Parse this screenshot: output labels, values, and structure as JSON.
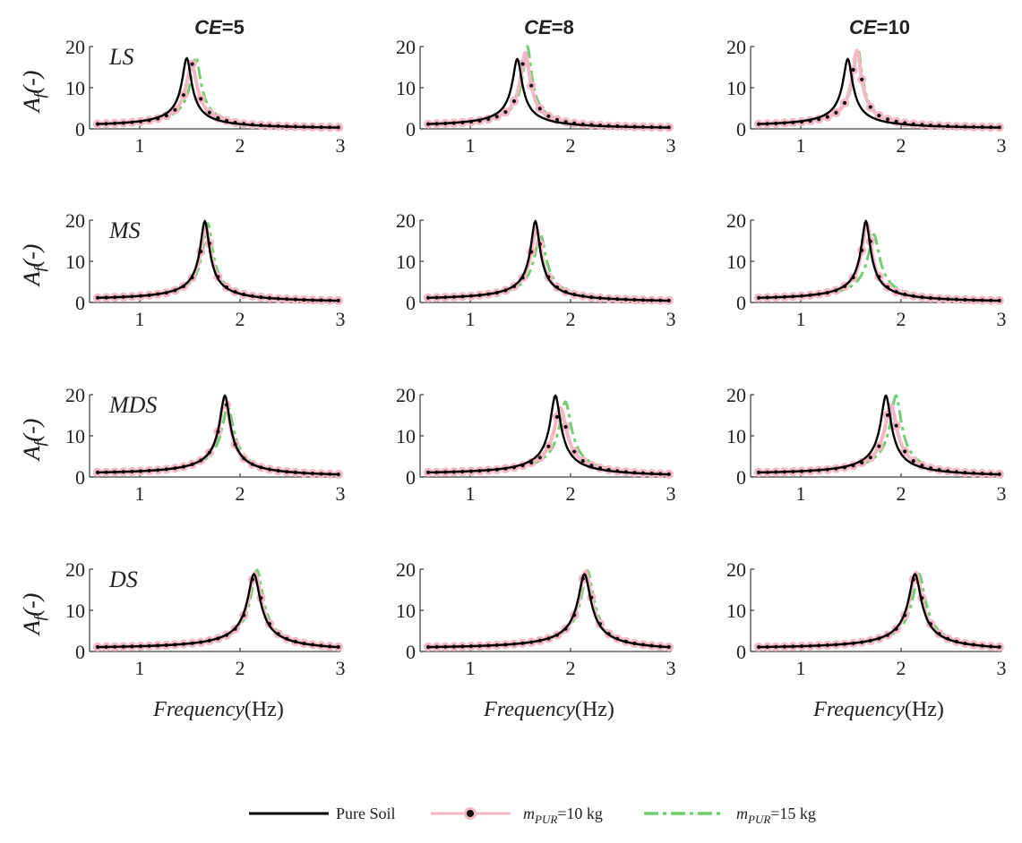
{
  "figure": {
    "x_tick_labels": [
      "1",
      "2",
      "3"
    ],
    "y_tick_labels": [
      "0",
      "10",
      "20"
    ],
    "y_axis_label": {
      "main": "A",
      "sub": "f",
      "tail": "(-)"
    },
    "x_axis_label": {
      "italic": "Frequency",
      "unit": "(Hz)"
    }
  },
  "column_titles": [
    {
      "italic": "CE",
      "tail": "=5"
    },
    {
      "italic": "CE",
      "tail": "=8"
    },
    {
      "italic": "CE",
      "tail": "=10"
    }
  ],
  "row_labels": [
    "LS",
    "MS",
    "MDS",
    "DS"
  ],
  "legend": {
    "items": [
      {
        "label": "Pure Soil",
        "color": "#000000"
      },
      {
        "main": "m",
        "sub": "PUR",
        "tail": "=10 kg",
        "color": "#f4b8c4",
        "marker_color": "#111111"
      },
      {
        "main": "m",
        "sub": "PUR",
        "tail": "=15 kg",
        "color": "#6fd06f"
      }
    ]
  },
  "chart_data": {
    "type": "line",
    "layout": "4x3 grid of panels",
    "xlabel": "Frequency(Hz)",
    "ylabel": "Af(-)",
    "xlim": [
      0.5,
      3
    ],
    "ylim": [
      0,
      20
    ],
    "x_ticks": [
      1,
      2,
      3
    ],
    "y_ticks": [
      0,
      10,
      20
    ],
    "series_names": [
      "Pure Soil",
      "mPUR=10 kg",
      "mPUR=15 kg"
    ],
    "columns": [
      "CE=5",
      "CE=8",
      "CE=10"
    ],
    "rows": [
      "LS",
      "MS",
      "MDS",
      "DS"
    ],
    "panels": [
      {
        "row": "LS",
        "col": "CE=5",
        "series": [
          {
            "name": "Pure Soil",
            "peak_freq": 1.47,
            "peak_amp": 17.2
          },
          {
            "name": "mPUR=10 kg",
            "peak_freq": 1.52,
            "peak_amp": 15.8
          },
          {
            "name": "mPUR=15 kg",
            "peak_freq": 1.56,
            "peak_amp": 17.5
          }
        ]
      },
      {
        "row": "LS",
        "col": "CE=8",
        "series": [
          {
            "name": "Pure Soil",
            "peak_freq": 1.47,
            "peak_amp": 17.0
          },
          {
            "name": "mPUR=10 kg",
            "peak_freq": 1.55,
            "peak_amp": 18.5
          },
          {
            "name": "mPUR=15 kg",
            "peak_freq": 1.57,
            "peak_amp": 20.0
          }
        ]
      },
      {
        "row": "LS",
        "col": "CE=10",
        "series": [
          {
            "name": "Pure Soil",
            "peak_freq": 1.47,
            "peak_amp": 17.0
          },
          {
            "name": "mPUR=10 kg",
            "peak_freq": 1.56,
            "peak_amp": 19.0
          },
          {
            "name": "mPUR=15 kg",
            "peak_freq": 1.57,
            "peak_amp": 19.3
          }
        ]
      },
      {
        "row": "MS",
        "col": "CE=5",
        "series": [
          {
            "name": "Pure Soil",
            "peak_freq": 1.65,
            "peak_amp": 19.8
          },
          {
            "name": "mPUR=10 kg",
            "peak_freq": 1.66,
            "peak_amp": 18.3
          },
          {
            "name": "mPUR=15 kg",
            "peak_freq": 1.68,
            "peak_amp": 19.2
          }
        ]
      },
      {
        "row": "MS",
        "col": "CE=8",
        "series": [
          {
            "name": "Pure Soil",
            "peak_freq": 1.65,
            "peak_amp": 19.8
          },
          {
            "name": "mPUR=10 kg",
            "peak_freq": 1.66,
            "peak_amp": 18.0
          },
          {
            "name": "mPUR=15 kg",
            "peak_freq": 1.7,
            "peak_amp": 16.5
          }
        ]
      },
      {
        "row": "MS",
        "col": "CE=10",
        "series": [
          {
            "name": "Pure Soil",
            "peak_freq": 1.65,
            "peak_amp": 19.8
          },
          {
            "name": "mPUR=10 kg",
            "peak_freq": 1.66,
            "peak_amp": 19.3
          },
          {
            "name": "mPUR=15 kg",
            "peak_freq": 1.73,
            "peak_amp": 16.5
          }
        ]
      },
      {
        "row": "MDS",
        "col": "CE=5",
        "series": [
          {
            "name": "Pure Soil",
            "peak_freq": 1.85,
            "peak_amp": 19.8
          },
          {
            "name": "mPUR=10 kg",
            "peak_freq": 1.85,
            "peak_amp": 18.5
          },
          {
            "name": "mPUR=15 kg",
            "peak_freq": 1.88,
            "peak_amp": 17.0
          }
        ]
      },
      {
        "row": "MDS",
        "col": "CE=8",
        "series": [
          {
            "name": "Pure Soil",
            "peak_freq": 1.85,
            "peak_amp": 19.8
          },
          {
            "name": "mPUR=10 kg",
            "peak_freq": 1.9,
            "peak_amp": 16.8
          },
          {
            "name": "mPUR=15 kg",
            "peak_freq": 1.95,
            "peak_amp": 18.3
          }
        ]
      },
      {
        "row": "MDS",
        "col": "CE=10",
        "series": [
          {
            "name": "Pure Soil",
            "peak_freq": 1.85,
            "peak_amp": 19.8
          },
          {
            "name": "mPUR=10 kg",
            "peak_freq": 1.9,
            "peak_amp": 17.5
          },
          {
            "name": "mPUR=15 kg",
            "peak_freq": 1.95,
            "peak_amp": 19.8
          }
        ]
      },
      {
        "row": "DS",
        "col": "CE=5",
        "series": [
          {
            "name": "Pure Soil",
            "peak_freq": 2.14,
            "peak_amp": 18.8
          },
          {
            "name": "mPUR=10 kg",
            "peak_freq": 2.15,
            "peak_amp": 19.2
          },
          {
            "name": "mPUR=15 kg",
            "peak_freq": 2.17,
            "peak_amp": 19.8
          }
        ]
      },
      {
        "row": "DS",
        "col": "CE=8",
        "series": [
          {
            "name": "Pure Soil",
            "peak_freq": 2.14,
            "peak_amp": 18.8
          },
          {
            "name": "mPUR=10 kg",
            "peak_freq": 2.15,
            "peak_amp": 19.5
          },
          {
            "name": "mPUR=15 kg",
            "peak_freq": 2.17,
            "peak_amp": 19.6
          }
        ]
      },
      {
        "row": "DS",
        "col": "CE=10",
        "series": [
          {
            "name": "Pure Soil",
            "peak_freq": 2.14,
            "peak_amp": 18.8
          },
          {
            "name": "mPUR=10 kg",
            "peak_freq": 2.15,
            "peak_amp": 19.2
          },
          {
            "name": "mPUR=15 kg",
            "peak_freq": 2.18,
            "peak_amp": 18.8
          }
        ]
      }
    ]
  }
}
